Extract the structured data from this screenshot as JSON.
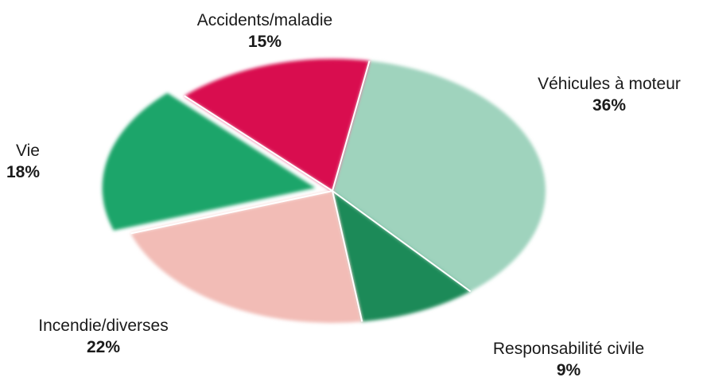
{
  "chart_data": {
    "type": "pie",
    "title": "",
    "slices": [
      {
        "label": "Véhicules à moteur",
        "value": 36,
        "display": "36%",
        "color": "#9fd3bd"
      },
      {
        "label": "Responsabilité civile",
        "value": 9,
        "display": "9%",
        "color": "#1a8a58"
      },
      {
        "label": "Incendie/diverses",
        "value": 22,
        "display": "22%",
        "color": "#f2bcb6"
      },
      {
        "label": "Vie",
        "value": 18,
        "display": "18%",
        "color": "#1fa56a",
        "exploded": true
      },
      {
        "label": "Accidents/maladie",
        "value": 15,
        "display": "15%",
        "color": "#d90a4f"
      }
    ],
    "legend": "none",
    "unit": "%"
  }
}
